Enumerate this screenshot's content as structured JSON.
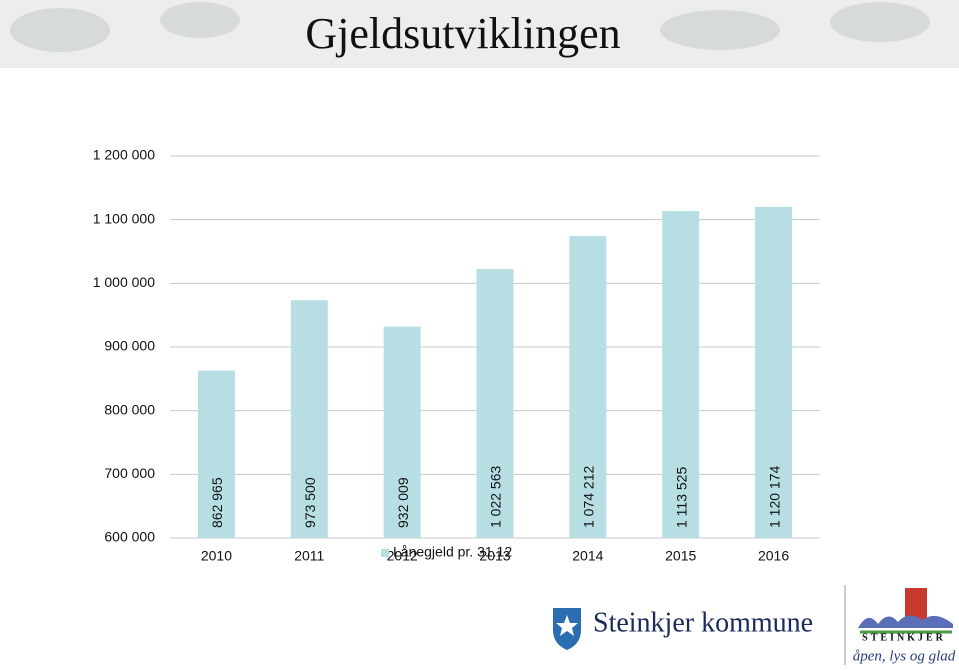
{
  "chart_data": {
    "type": "bar",
    "title": "Gjeldsutviklingen",
    "categories": [
      "2010",
      "2011",
      "2012",
      "2013",
      "2014",
      "2015",
      "2016"
    ],
    "series": [
      {
        "name": "Lånegjeld pr. 31.12",
        "color": "#b7dfe3",
        "values": [
          862965,
          973500,
          932009,
          1022563,
          1074212,
          1113525,
          1120174
        ],
        "value_labels": [
          "862 965",
          "973 500",
          "932 009",
          "1 022 563",
          "1 074 212",
          "1 113 525",
          "1 120 174"
        ]
      }
    ],
    "ylim": [
      600000,
      1200000
    ],
    "yticks": [
      {
        "value": 600000,
        "label": "600 000"
      },
      {
        "value": 700000,
        "label": "700 000"
      },
      {
        "value": 800000,
        "label": "800 000"
      },
      {
        "value": 900000,
        "label": "900 000"
      },
      {
        "value": 1000000,
        "label": "1 000 000"
      },
      {
        "value": 1100000,
        "label": "1 100 000"
      },
      {
        "value": 1200000,
        "label": "1 200 000"
      }
    ],
    "grid": true,
    "legend": "bottom"
  },
  "footer": {
    "organization": "Steinkjer kommune",
    "logo_name": "STEINKJER",
    "slogan": "åpen, lys og glad"
  }
}
